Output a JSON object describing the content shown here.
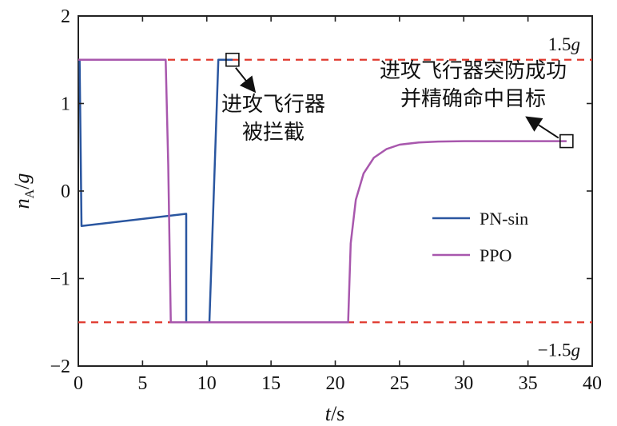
{
  "chart_data": {
    "type": "line",
    "xlabel": "t/s",
    "ylabel": "n_A/g",
    "xlim": [
      0,
      40
    ],
    "ylim": [
      -2,
      2
    ],
    "x_ticks": [
      "0",
      "5",
      "10",
      "15",
      "20",
      "25",
      "30",
      "35",
      "40"
    ],
    "y_ticks": [
      "2",
      "1",
      "0",
      "−1",
      "−2"
    ],
    "grid": false,
    "legend_position": "center-right",
    "reference_lines": [
      {
        "label_prefix": "1.5",
        "label_var": "g",
        "y": 1.5,
        "color": "#e03a2f",
        "style": "dashed"
      },
      {
        "label_prefix": "−1.5",
        "label_var": "g",
        "y": -1.5,
        "color": "#e03a2f",
        "style": "dashed"
      }
    ],
    "series": [
      {
        "name": "PN-sin",
        "color": "#2a56a0",
        "x": [
          0,
          0.1,
          0.25,
          8.4,
          8.4,
          8.6,
          10.2,
          10.9,
          12
        ],
        "y": [
          1.5,
          1.5,
          -0.4,
          -0.26,
          -1.5,
          -1.5,
          -1.5,
          1.5,
          1.5
        ]
      },
      {
        "name": "PPO",
        "color": "#a857ad",
        "x": [
          0,
          6.8,
          7.0,
          7.2,
          21.0,
          21.2,
          21.6,
          22.2,
          23.0,
          24.0,
          25.0,
          26.5,
          28.0,
          30.0,
          33.0,
          38.0
        ],
        "y": [
          1.5,
          1.5,
          0.3,
          -1.5,
          -1.5,
          -0.6,
          -0.1,
          0.2,
          0.38,
          0.48,
          0.53,
          0.555,
          0.565,
          0.57,
          0.57,
          0.57
        ]
      }
    ],
    "annotations": [
      {
        "lines": [
          "进攻飞行器",
          "被拦截"
        ],
        "x": 12,
        "y": 1.5
      },
      {
        "lines": [
          "进攻飞行器突防成功",
          "并精确命中目标"
        ],
        "x": 38,
        "y": 0.57
      }
    ]
  }
}
